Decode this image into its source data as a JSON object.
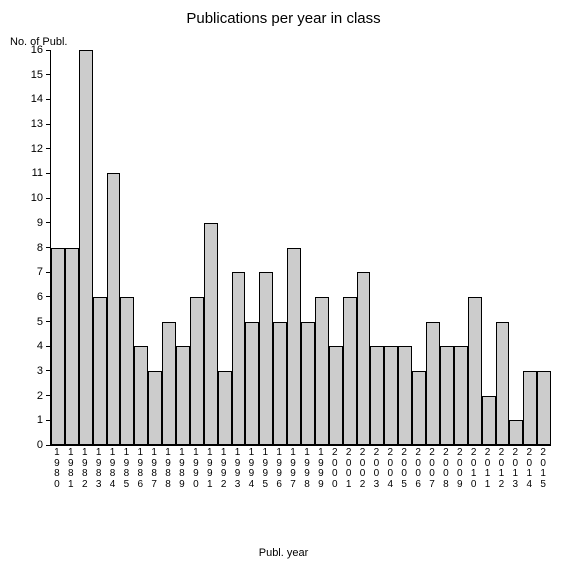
{
  "chart": {
    "type": "bar",
    "title": "Publications per year in class",
    "title_fontsize": 15,
    "y_axis_label": "No. of Publ.",
    "x_axis_label": "Publ. year",
    "label_fontsize": 11,
    "categories": [
      "1980",
      "1981",
      "1982",
      "1983",
      "1984",
      "1985",
      "1986",
      "1987",
      "1988",
      "1989",
      "1990",
      "1991",
      "1992",
      "1993",
      "1994",
      "1995",
      "1996",
      "1997",
      "1998",
      "1999",
      "2000",
      "2001",
      "2002",
      "2003",
      "2004",
      "2005",
      "2006",
      "2007",
      "2008",
      "2009",
      "2010",
      "2011",
      "2012",
      "2013",
      "2014",
      "2015"
    ],
    "values": [
      8,
      8,
      16,
      6,
      11,
      6,
      4,
      3,
      5,
      4,
      6,
      9,
      3,
      7,
      5,
      7,
      5,
      8,
      5,
      6,
      4,
      6,
      7,
      4,
      4,
      4,
      3,
      5,
      4,
      4,
      6,
      2,
      5,
      1,
      3,
      3
    ],
    "bar_color": "#cccccc",
    "bar_border_color": "#000000",
    "background_color": "#ffffff",
    "axis_color": "#000000",
    "ylim": [
      0,
      16
    ],
    "ytick_step": 1,
    "tick_fontsize": 11,
    "x_tick_fontsize": 10,
    "bar_width": 1.0
  }
}
